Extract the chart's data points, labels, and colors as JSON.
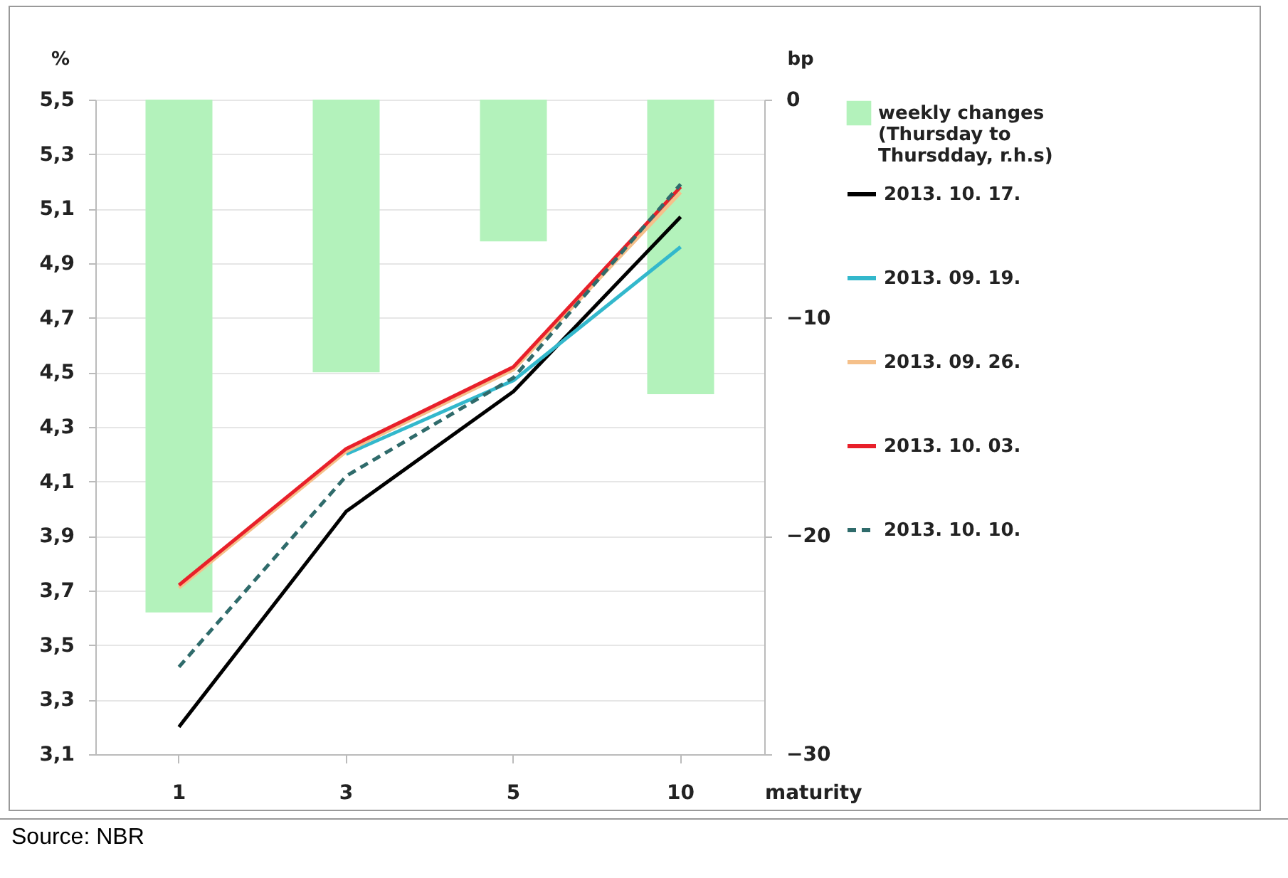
{
  "chart_data": {
    "type": "line",
    "categories": [
      "1",
      "3",
      "5",
      "10"
    ],
    "xlabel": "maturity",
    "ylabel": "%",
    "y2label": "bp",
    "ylim": [
      3.1,
      5.5
    ],
    "yticks": [
      {
        "value": 3.1,
        "label": "3,1"
      },
      {
        "value": 3.3,
        "label": "3,3"
      },
      {
        "value": 3.5,
        "label": "3,5"
      },
      {
        "value": 3.7,
        "label": "3,7"
      },
      {
        "value": 3.9,
        "label": "3,9"
      },
      {
        "value": 4.1,
        "label": "4,1"
      },
      {
        "value": 4.3,
        "label": "4,3"
      },
      {
        "value": 4.5,
        "label": "4,5"
      },
      {
        "value": 4.7,
        "label": "4,7"
      },
      {
        "value": 4.9,
        "label": "4,9"
      },
      {
        "value": 5.1,
        "label": "5,1"
      },
      {
        "value": 5.3,
        "label": "5,3"
      },
      {
        "value": 5.5,
        "label": "5,5"
      }
    ],
    "y2lim": [
      -30,
      0
    ],
    "y2ticks": [
      -30,
      -20,
      -10,
      0
    ],
    "series": [
      {
        "type": "bar",
        "axis": "y2",
        "name": "weekly changes (Thursday to Thursdday, r.h.s)",
        "color": "#b3f2bb",
        "values": [
          -23.5,
          -12.5,
          -6.5,
          -13.5
        ]
      },
      {
        "name": "2013. 10. 17.",
        "color": "#000000",
        "values": [
          3.2,
          3.99,
          4.43,
          5.07
        ]
      },
      {
        "name": "2013. 09. 19.",
        "color": "#33b8cc",
        "values": [
          null,
          4.2,
          4.47,
          4.96
        ]
      },
      {
        "name": "2013. 09. 26.",
        "color": "#f5c08a",
        "values": [
          3.71,
          4.21,
          4.51,
          5.16
        ]
      },
      {
        "name": "2013. 10. 03.",
        "color": "#e8202a",
        "values": [
          3.72,
          4.22,
          4.52,
          5.18
        ]
      },
      {
        "name": "2013. 10. 10.",
        "color": "#2f6b6b",
        "line_style": "dashed",
        "values": [
          3.42,
          4.12,
          4.48,
          5.19
        ]
      }
    ],
    "grid": "y",
    "legend": "right",
    "marker": "none",
    "line_style": "solid",
    "annotations": [
      "Source: NBR"
    ]
  }
}
